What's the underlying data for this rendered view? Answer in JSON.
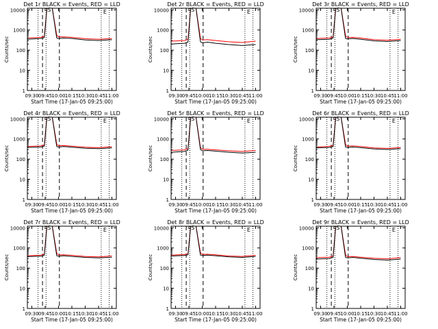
{
  "figure": {
    "xlabel": "Start Time (17-Jan-05 09:25:00)",
    "ylabel": "Counts/sec",
    "title_suffix": "BLACK = Events, RED = LLD"
  },
  "colors": {
    "events": "#000000",
    "lld": "#ff0000",
    "background": "#ffffff",
    "axes": "#000000"
  },
  "chart_data": [
    {
      "type": "line",
      "detector": "Det 1r",
      "title": "Det 1r BLACK = Events, RED = LLD",
      "xlabel": "Start Time (17-Jan-05 09:25:00)",
      "ylabel": "Counts/sec",
      "xticks": [
        "09:30",
        "09:45",
        "10:00",
        "10:15",
        "10:30",
        "10:45",
        "11:00"
      ],
      "yticks": [
        "1",
        "10",
        "100",
        "1000",
        "10000"
      ],
      "ylim": [
        1,
        12000
      ],
      "yscale": "log",
      "markers": {
        "vertical_dotted": [
          "09:37",
          "09:46",
          "10:48",
          "10:57"
        ],
        "vertical_dashed": [
          "09:42",
          "10:01"
        ],
        "labels": [
          "S",
          "E"
        ]
      },
      "series": [
        {
          "name": "Events",
          "color": "black",
          "x": [
            "09:25",
            "09:40",
            "09:44",
            "09:47",
            "09:53",
            "09:58",
            "10:00",
            "10:06",
            "10:15",
            "10:30",
            "10:45",
            "11:00"
          ],
          "values": [
            350,
            380,
            420,
            12000,
            12000,
            400,
            380,
            400,
            380,
            320,
            300,
            330
          ]
        },
        {
          "name": "LLD",
          "color": "red",
          "x": [
            "09:25",
            "09:40",
            "09:44",
            "09:47",
            "09:53",
            "09:58",
            "10:00",
            "10:06",
            "10:15",
            "10:30",
            "10:45",
            "11:00"
          ],
          "values": [
            400,
            430,
            480,
            12000,
            12000,
            550,
            450,
            460,
            430,
            370,
            350,
            380
          ]
        }
      ]
    },
    {
      "type": "line",
      "detector": "Det 2r",
      "title": "Det 2r BLACK = Events, RED = LLD",
      "xlabel": "Start Time (17-Jan-05 09:25:00)",
      "ylabel": "Counts/sec",
      "xticks": [
        "09:30",
        "09:45",
        "10:00",
        "10:15",
        "10:30",
        "10:45",
        "11:00"
      ],
      "yticks": [
        "1",
        "10",
        "100",
        "1000",
        "10000"
      ],
      "ylim": [
        1,
        12000
      ],
      "yscale": "log",
      "markers": {
        "vertical_dotted": [
          "09:37",
          "09:46",
          "10:48",
          "10:57"
        ],
        "vertical_dashed": [
          "09:42",
          "10:01"
        ],
        "labels": [
          "S",
          "E"
        ]
      },
      "series": [
        {
          "name": "Events",
          "color": "black",
          "x": [
            "09:25",
            "09:40",
            "09:44",
            "09:47",
            "09:53",
            "09:58",
            "10:00",
            "10:06",
            "10:15",
            "10:30",
            "10:45",
            "11:00"
          ],
          "values": [
            200,
            220,
            250,
            12000,
            12000,
            260,
            230,
            250,
            220,
            190,
            170,
            190
          ]
        },
        {
          "name": "LLD",
          "color": "red",
          "x": [
            "09:25",
            "09:40",
            "09:44",
            "09:47",
            "09:53",
            "09:58",
            "10:00",
            "10:06",
            "10:15",
            "10:30",
            "10:45",
            "11:00"
          ],
          "values": [
            280,
            300,
            340,
            12000,
            12000,
            380,
            320,
            330,
            300,
            260,
            240,
            280
          ]
        }
      ]
    },
    {
      "type": "line",
      "detector": "Det 3r",
      "title": "Det 3r BLACK = Events, RED = LLD",
      "xlabel": "Start Time (17-Jan-05 09:25:00)",
      "ylabel": "Counts/sec",
      "xticks": [
        "09:30",
        "09:45",
        "10:00",
        "10:15",
        "10:30",
        "10:45",
        "11:00"
      ],
      "yticks": [
        "1",
        "10",
        "100",
        "1000",
        "10000"
      ],
      "ylim": [
        1,
        12000
      ],
      "yscale": "log",
      "markers": {
        "vertical_dotted": [
          "09:37",
          "09:46",
          "10:48",
          "10:57"
        ],
        "vertical_dashed": [
          "09:42",
          "10:01"
        ],
        "labels": [
          "S",
          "E"
        ]
      },
      "series": [
        {
          "name": "Events",
          "color": "black",
          "x": [
            "09:25",
            "09:40",
            "09:44",
            "09:47",
            "09:53",
            "09:58",
            "10:00",
            "10:06",
            "10:15",
            "10:30",
            "10:45",
            "11:00"
          ],
          "values": [
            330,
            350,
            400,
            12000,
            12000,
            380,
            360,
            380,
            350,
            290,
            270,
            300
          ]
        },
        {
          "name": "LLD",
          "color": "red",
          "x": [
            "09:25",
            "09:40",
            "09:44",
            "09:47",
            "09:53",
            "09:58",
            "10:00",
            "10:06",
            "10:15",
            "10:30",
            "10:45",
            "11:00"
          ],
          "values": [
            380,
            400,
            460,
            12000,
            12000,
            520,
            420,
            430,
            400,
            330,
            310,
            350
          ]
        }
      ]
    },
    {
      "type": "line",
      "detector": "Det 4r",
      "title": "Det 4r BLACK = Events, RED = LLD",
      "xlabel": "Start Time (17-Jan-05 09:25:00)",
      "ylabel": "Counts/sec",
      "xticks": [
        "09:30",
        "09:45",
        "10:00",
        "10:15",
        "10:30",
        "10:45",
        "11:00"
      ],
      "yticks": [
        "1",
        "10",
        "100",
        "1000",
        "10000"
      ],
      "ylim": [
        1,
        12000
      ],
      "yscale": "log",
      "markers": {
        "vertical_dotted": [
          "09:37",
          "09:46",
          "10:48",
          "10:57"
        ],
        "vertical_dashed": [
          "09:42",
          "10:01"
        ],
        "labels": [
          "S",
          "E"
        ]
      },
      "series": [
        {
          "name": "Events",
          "color": "black",
          "x": [
            "09:25",
            "09:40",
            "09:44",
            "09:47",
            "09:53",
            "09:58",
            "10:00",
            "10:06",
            "10:15",
            "10:30",
            "10:45",
            "11:00"
          ],
          "values": [
            380,
            400,
            440,
            12000,
            12000,
            420,
            400,
            420,
            390,
            350,
            330,
            360
          ]
        },
        {
          "name": "LLD",
          "color": "red",
          "x": [
            "09:25",
            "09:40",
            "09:44",
            "09:47",
            "09:53",
            "09:58",
            "10:00",
            "10:06",
            "10:15",
            "10:30",
            "10:45",
            "11:00"
          ],
          "values": [
            420,
            450,
            500,
            12000,
            12000,
            560,
            460,
            470,
            440,
            390,
            370,
            410
          ]
        }
      ]
    },
    {
      "type": "line",
      "detector": "Det 5r",
      "title": "Det 5r BLACK = Events, RED = LLD",
      "xlabel": "Start Time (17-Jan-05 09:25:00)",
      "ylabel": "Counts/sec",
      "xticks": [
        "09:30",
        "09:45",
        "10:00",
        "10:15",
        "10:30",
        "10:45",
        "11:00"
      ],
      "yticks": [
        "1",
        "10",
        "100",
        "1000",
        "10000"
      ],
      "ylim": [
        1,
        12000
      ],
      "yscale": "log",
      "markers": {
        "vertical_dotted": [
          "09:37",
          "09:46",
          "10:48",
          "10:57"
        ],
        "vertical_dashed": [
          "09:42",
          "10:01"
        ],
        "labels": [
          "S",
          "E"
        ]
      },
      "series": [
        {
          "name": "Events",
          "color": "black",
          "x": [
            "09:25",
            "09:40",
            "09:44",
            "09:47",
            "09:53",
            "09:58",
            "10:00",
            "10:06",
            "10:15",
            "10:30",
            "10:45",
            "11:00"
          ],
          "values": [
            220,
            240,
            280,
            12000,
            12000,
            300,
            260,
            270,
            250,
            220,
            200,
            220
          ]
        },
        {
          "name": "LLD",
          "color": "red",
          "x": [
            "09:25",
            "09:40",
            "09:44",
            "09:47",
            "09:53",
            "09:58",
            "10:00",
            "10:06",
            "10:15",
            "10:30",
            "10:45",
            "11:00"
          ],
          "values": [
            270,
            290,
            330,
            12000,
            12000,
            380,
            310,
            310,
            290,
            260,
            240,
            270
          ]
        }
      ]
    },
    {
      "type": "line",
      "detector": "Det 6r",
      "title": "Det 6r BLACK = Events, RED = LLD",
      "xlabel": "Start Time (17-Jan-05 09:25:00)",
      "ylabel": "Counts/sec",
      "xticks": [
        "09:30",
        "09:45",
        "10:00",
        "10:15",
        "10:30",
        "10:45",
        "11:00"
      ],
      "yticks": [
        "1",
        "10",
        "100",
        "1000",
        "10000"
      ],
      "ylim": [
        1,
        12000
      ],
      "yscale": "log",
      "markers": {
        "vertical_dotted": [
          "09:37",
          "09:46",
          "10:48",
          "10:57"
        ],
        "vertical_dashed": [
          "09:42",
          "10:01"
        ],
        "labels": [
          "S",
          "E"
        ]
      },
      "series": [
        {
          "name": "Events",
          "color": "black",
          "x": [
            "09:25",
            "09:40",
            "09:44",
            "09:47",
            "09:53",
            "09:58",
            "10:00",
            "10:06",
            "10:15",
            "10:30",
            "10:45",
            "11:00"
          ],
          "values": [
            360,
            380,
            420,
            12000,
            12000,
            400,
            380,
            400,
            370,
            320,
            300,
            330
          ]
        },
        {
          "name": "LLD",
          "color": "red",
          "x": [
            "09:25",
            "09:40",
            "09:44",
            "09:47",
            "09:53",
            "09:58",
            "10:00",
            "10:06",
            "10:15",
            "10:30",
            "10:45",
            "11:00"
          ],
          "values": [
            400,
            430,
            480,
            12000,
            12000,
            540,
            440,
            450,
            420,
            360,
            340,
            380
          ]
        }
      ]
    },
    {
      "type": "line",
      "detector": "Det 7r",
      "title": "Det 7r BLACK = Events, RED = LLD",
      "xlabel": "Start Time (17-Jan-05 09:25:00)",
      "ylabel": "Counts/sec",
      "xticks": [
        "09:30",
        "09:45",
        "10:00",
        "10:15",
        "10:30",
        "10:45",
        "11:00"
      ],
      "yticks": [
        "1",
        "10",
        "100",
        "1000",
        "10000"
      ],
      "ylim": [
        1,
        12000
      ],
      "yscale": "log",
      "markers": {
        "vertical_dotted": [
          "09:37",
          "09:46",
          "10:48",
          "10:57"
        ],
        "vertical_dashed": [
          "09:42",
          "10:01"
        ],
        "labels": [
          "S",
          "E"
        ]
      },
      "series": [
        {
          "name": "Events",
          "color": "black",
          "x": [
            "09:25",
            "09:40",
            "09:44",
            "09:47",
            "09:53",
            "09:58",
            "10:00",
            "10:06",
            "10:15",
            "10:30",
            "10:45",
            "11:00"
          ],
          "values": [
            370,
            390,
            430,
            12000,
            12000,
            410,
            390,
            410,
            380,
            340,
            320,
            350
          ]
        },
        {
          "name": "LLD",
          "color": "red",
          "x": [
            "09:25",
            "09:40",
            "09:44",
            "09:47",
            "09:53",
            "09:58",
            "10:00",
            "10:06",
            "10:15",
            "10:30",
            "10:45",
            "11:00"
          ],
          "values": [
            410,
            440,
            490,
            12000,
            12000,
            550,
            450,
            460,
            430,
            380,
            360,
            400
          ]
        }
      ]
    },
    {
      "type": "line",
      "detector": "Det 8r",
      "title": "Det 8r BLACK = Events, RED = LLD",
      "xlabel": "Start Time (17-Jan-05 09:25:00)",
      "ylabel": "Counts/sec",
      "xticks": [
        "09:30",
        "09:45",
        "10:00",
        "10:15",
        "10:30",
        "10:45",
        "11:00"
      ],
      "yticks": [
        "1",
        "10",
        "100",
        "1000",
        "10000"
      ],
      "ylim": [
        1,
        12000
      ],
      "yscale": "log",
      "markers": {
        "vertical_dotted": [
          "09:37",
          "09:46",
          "10:48",
          "10:57"
        ],
        "vertical_dashed": [
          "09:42",
          "10:01"
        ],
        "labels": [
          "S",
          "E"
        ]
      },
      "series": [
        {
          "name": "Events",
          "color": "black",
          "x": [
            "09:25",
            "09:40",
            "09:44",
            "09:47",
            "09:53",
            "09:58",
            "10:00",
            "10:06",
            "10:15",
            "10:30",
            "10:45",
            "11:00"
          ],
          "values": [
            400,
            420,
            460,
            12000,
            12000,
            440,
            420,
            440,
            410,
            360,
            340,
            380
          ]
        },
        {
          "name": "LLD",
          "color": "red",
          "x": [
            "09:25",
            "09:40",
            "09:44",
            "09:47",
            "09:53",
            "09:58",
            "10:00",
            "10:06",
            "10:15",
            "10:30",
            "10:45",
            "11:00"
          ],
          "values": [
            440,
            470,
            520,
            12000,
            12000,
            580,
            480,
            490,
            460,
            400,
            380,
            430
          ]
        }
      ]
    },
    {
      "type": "line",
      "detector": "Det 9r",
      "title": "Det 9r BLACK = Events, RED = LLD",
      "xlabel": "Start Time (17-Jan-05 09:25:00)",
      "ylabel": "Counts/sec",
      "xticks": [
        "09:30",
        "09:45",
        "10:00",
        "10:15",
        "10:30",
        "10:45",
        "11:00"
      ],
      "yticks": [
        "1",
        "10",
        "100",
        "1000",
        "10000"
      ],
      "ylim": [
        1,
        12000
      ],
      "yscale": "log",
      "markers": {
        "vertical_dotted": [
          "09:37",
          "09:46",
          "10:48",
          "10:57"
        ],
        "vertical_dashed": [
          "09:42",
          "10:01"
        ],
        "labels": [
          "S",
          "E"
        ]
      },
      "series": [
        {
          "name": "Events",
          "color": "black",
          "x": [
            "09:25",
            "09:40",
            "09:44",
            "09:47",
            "09:53",
            "09:58",
            "10:00",
            "10:06",
            "10:15",
            "10:30",
            "10:45",
            "11:00"
          ],
          "values": [
            280,
            300,
            340,
            12000,
            12000,
            340,
            320,
            340,
            310,
            270,
            250,
            280
          ]
        },
        {
          "name": "LLD",
          "color": "red",
          "x": [
            "09:25",
            "09:40",
            "09:44",
            "09:47",
            "09:53",
            "09:58",
            "10:00",
            "10:06",
            "10:15",
            "10:30",
            "10:45",
            "11:00"
          ],
          "values": [
            330,
            350,
            400,
            12000,
            12000,
            460,
            370,
            380,
            350,
            310,
            290,
            330
          ]
        }
      ]
    }
  ]
}
